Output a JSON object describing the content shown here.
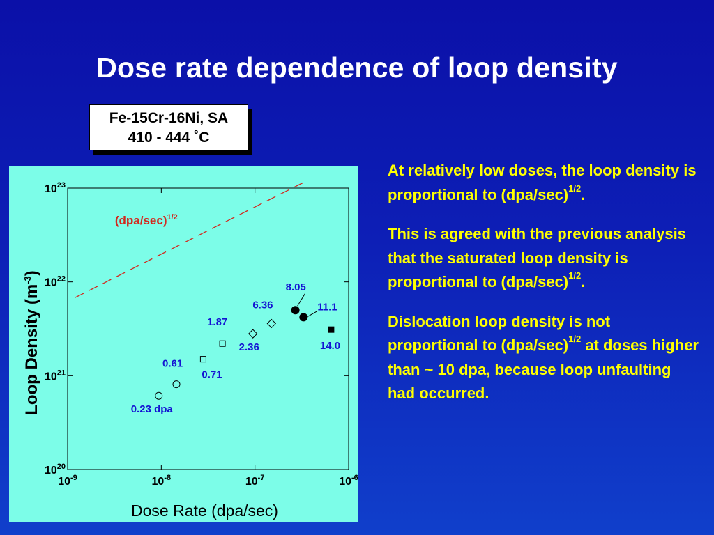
{
  "slide": {
    "title": "Dose rate dependence of loop density",
    "sample_line1": "Fe-15Cr-16Ni, SA",
    "sample_line2": "410 - 444 ˚C",
    "colors": {
      "background": "#0b10a8",
      "plot_bg": "#7cfde8",
      "text_yellow": "#ffff00",
      "annotation_blue": "#1414d2",
      "trend_red": "#d2281e"
    }
  },
  "notes": {
    "p1_pre": "At relatively low doses, the loop density is proportional to (dpa/sec)",
    "p1_sup": "1/2",
    "p1_post": ".",
    "p2_pre": "This is agreed with the previous analysis that the saturated loop density is proportional to (dpa/sec)",
    "p2_sup": "1/2",
    "p2_post": ".",
    "p3_pre": "Dislocation loop density is not proportional to (dpa/sec)",
    "p3_sup": "1/2",
    "p3_post": " at doses higher than ~ 10 dpa, because loop unfaulting had occurred."
  },
  "chart_data": {
    "type": "scatter",
    "xlabel": "Dose Rate (dpa/sec)",
    "ylabel_pre": "Loop Density (m",
    "ylabel_sup": "-3",
    "ylabel_post": ")",
    "xscale": "log",
    "yscale": "log",
    "xlim": [
      1e-09,
      1e-06
    ],
    "ylim": [
      1e+20,
      1e+23
    ],
    "x_ticks": [
      {
        "base": "10",
        "exp": "-9"
      },
      {
        "base": "10",
        "exp": "-8"
      },
      {
        "base": "10",
        "exp": "-7"
      },
      {
        "base": "10",
        "exp": "-6"
      }
    ],
    "y_ticks": [
      {
        "base": "10",
        "exp": "20"
      },
      {
        "base": "10",
        "exp": "21"
      },
      {
        "base": "10",
        "exp": "22"
      },
      {
        "base": "10",
        "exp": "23"
      }
    ],
    "points": [
      {
        "x": 9.4e-09,
        "y": 6.1e+20,
        "marker": "circle-open",
        "label": "0.23 dpa"
      },
      {
        "x": 1.45e-08,
        "y": 8.1e+20,
        "marker": "circle-open",
        "label": "0.61"
      },
      {
        "x": 2.8e-08,
        "y": 1.5e+21,
        "marker": "square-open",
        "label": "0.71"
      },
      {
        "x": 4.5e-08,
        "y": 2.2e+21,
        "marker": "square-open",
        "label": "1.87"
      },
      {
        "x": 9.5e-08,
        "y": 2.8e+21,
        "marker": "diamond-open",
        "label": "2.36"
      },
      {
        "x": 1.5e-07,
        "y": 3.6e+21,
        "marker": "diamond-open",
        "label": "6.36"
      },
      {
        "x": 2.7e-07,
        "y": 5e+21,
        "marker": "circle-filled",
        "label": "8.05"
      },
      {
        "x": 3.3e-07,
        "y": 4.2e+21,
        "marker": "circle-filled",
        "label": "11.1"
      },
      {
        "x": 6.5e-07,
        "y": 3.1e+21,
        "marker": "square-filled",
        "label": "14.0"
      }
    ],
    "trend_line": {
      "name_pre": "(dpa/sec)",
      "name_sup": "1/2",
      "style": "dashed",
      "x": [
        1.2e-09,
        3.6e-07
      ],
      "y": [
        6.8e+21,
        1.2e+23
      ]
    }
  }
}
